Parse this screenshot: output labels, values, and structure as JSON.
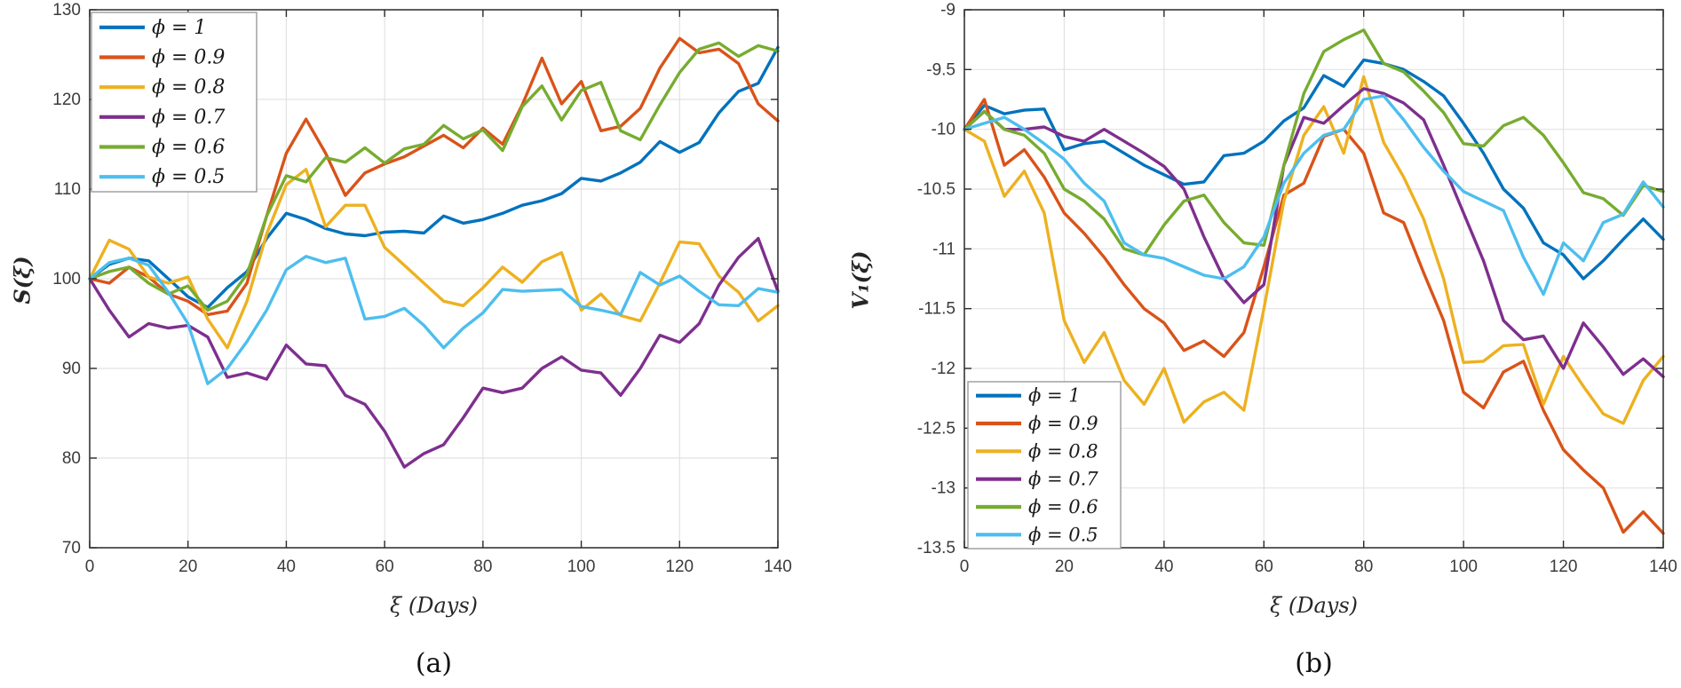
{
  "figure": {
    "background": "#ffffff",
    "captions": {
      "a": "(a)",
      "b": "(b)"
    }
  },
  "legend": {
    "labels": [
      "ϕ = 1",
      "ϕ = 0.9",
      "ϕ = 0.8",
      "ϕ = 0.7",
      "ϕ = 0.6",
      "ϕ = 0.5"
    ]
  },
  "colors": {
    "phi_1": "#0072BD",
    "phi_09": "#D95319",
    "phi_08": "#EDB120",
    "phi_07": "#7E2F8E",
    "phi_06": "#77AC30",
    "phi_05": "#4DBEEE",
    "grid": "#e2e2e2",
    "axis": "#2b2b2b",
    "tick_label": "#3b3b3b",
    "legend_border": "#9a9a9a"
  },
  "chart_data": [
    {
      "id": "a",
      "type": "line",
      "title": "",
      "xlabel": "ξ (Days)",
      "ylabel": "S(ξ)",
      "xlim": [
        0,
        140
      ],
      "ylim": [
        70,
        130
      ],
      "xticks": [
        0,
        20,
        40,
        60,
        80,
        100,
        120,
        140
      ],
      "yticks": [
        70,
        80,
        90,
        100,
        110,
        120,
        130
      ],
      "grid": true,
      "legend_position": "top-left",
      "x": [
        0,
        4,
        8,
        12,
        16,
        20,
        24,
        28,
        32,
        36,
        40,
        44,
        48,
        52,
        56,
        60,
        64,
        68,
        72,
        76,
        80,
        84,
        88,
        92,
        96,
        100,
        104,
        108,
        112,
        116,
        120,
        124,
        128,
        132,
        136,
        140
      ],
      "series": [
        {
          "name": "ϕ = 1",
          "color": "#0072BD",
          "values": [
            100,
            101.6,
            102.3,
            102.0,
            100.0,
            98.0,
            96.8,
            99.0,
            100.8,
            104.5,
            107.3,
            106.6,
            105.6,
            105.0,
            104.8,
            105.2,
            105.3,
            105.1,
            107.0,
            106.2,
            106.6,
            107.3,
            108.2,
            108.7,
            109.5,
            111.2,
            110.9,
            111.8,
            113.0,
            115.3,
            114.1,
            115.2,
            118.5,
            120.9,
            121.8,
            125.8
          ]
        },
        {
          "name": "ϕ = 0.9",
          "color": "#D95319",
          "values": [
            100,
            99.5,
            101.3,
            100.2,
            98.3,
            97.5,
            96.0,
            96.4,
            99.5,
            107.0,
            114.0,
            117.8,
            114.0,
            109.3,
            111.8,
            112.8,
            113.6,
            114.8,
            116.0,
            114.6,
            116.8,
            115.0,
            119.4,
            124.6,
            119.5,
            122.0,
            116.5,
            117.0,
            119.0,
            123.5,
            126.8,
            125.2,
            125.6,
            124.0,
            119.5,
            117.6
          ]
        },
        {
          "name": "ϕ = 0.8",
          "color": "#EDB120",
          "values": [
            100,
            104.3,
            103.3,
            100.2,
            99.5,
            100.2,
            95.5,
            92.3,
            97.5,
            105.0,
            110.5,
            112.2,
            105.8,
            108.2,
            108.2,
            103.5,
            101.5,
            99.5,
            97.5,
            97.0,
            99.0,
            101.3,
            99.6,
            101.9,
            102.9,
            96.5,
            98.3,
            95.9,
            95.3,
            99.5,
            104.1,
            103.9,
            100.3,
            98.5,
            95.3,
            97.0
          ]
        },
        {
          "name": "ϕ = 0.7",
          "color": "#7E2F8E",
          "values": [
            100,
            96.5,
            93.5,
            95.0,
            94.5,
            94.8,
            93.5,
            89.0,
            89.5,
            88.8,
            92.6,
            90.5,
            90.3,
            87.0,
            86.0,
            83.0,
            79.0,
            80.5,
            81.5,
            84.5,
            87.8,
            87.3,
            87.8,
            90.0,
            91.3,
            89.8,
            89.5,
            87.0,
            90.0,
            93.7,
            92.9,
            95.0,
            99.3,
            102.4,
            104.5,
            98.6
          ]
        },
        {
          "name": "ϕ = 0.6",
          "color": "#77AC30",
          "values": [
            100,
            100.8,
            101.3,
            99.5,
            98.3,
            99.2,
            96.5,
            97.5,
            100.5,
            107.0,
            111.5,
            110.8,
            113.5,
            113.0,
            114.6,
            112.9,
            114.5,
            115.0,
            117.1,
            115.6,
            116.6,
            114.3,
            119.2,
            121.5,
            117.7,
            121.0,
            121.9,
            116.5,
            115.5,
            119.4,
            123.0,
            125.6,
            126.3,
            124.8,
            126.0,
            125.4
          ]
        },
        {
          "name": "ϕ = 0.5",
          "color": "#4DBEEE",
          "values": [
            100,
            101.8,
            102.3,
            101.5,
            98.5,
            95.0,
            88.3,
            90.0,
            93.0,
            96.5,
            101.0,
            102.5,
            101.8,
            102.3,
            95.5,
            95.8,
            96.7,
            94.8,
            92.3,
            94.5,
            96.2,
            98.8,
            98.6,
            98.7,
            98.8,
            96.9,
            96.5,
            96.0,
            100.7,
            99.3,
            100.3,
            98.6,
            97.1,
            97.0,
            98.9,
            98.5
          ]
        }
      ]
    },
    {
      "id": "b",
      "type": "line",
      "title": "",
      "xlabel": "ξ (Days)",
      "ylabel": "V₁(ξ)",
      "xlim": [
        0,
        140
      ],
      "ylim": [
        -13.5,
        -9
      ],
      "xticks": [
        0,
        20,
        40,
        60,
        80,
        100,
        120,
        140
      ],
      "yticks": [
        -13.5,
        -13,
        -12.5,
        -12,
        -11.5,
        -11,
        -10.5,
        -10,
        -9.5,
        -9
      ],
      "grid": true,
      "legend_position": "bottom-left",
      "x": [
        0,
        4,
        8,
        12,
        16,
        20,
        24,
        28,
        32,
        36,
        40,
        44,
        48,
        52,
        56,
        60,
        64,
        68,
        72,
        76,
        80,
        84,
        88,
        92,
        96,
        100,
        104,
        108,
        112,
        116,
        120,
        124,
        128,
        132,
        136,
        140
      ],
      "series": [
        {
          "name": "ϕ = 1",
          "color": "#0072BD",
          "values": [
            -10.0,
            -9.8,
            -9.87,
            -9.84,
            -9.83,
            -10.17,
            -10.12,
            -10.1,
            -10.2,
            -10.3,
            -10.38,
            -10.46,
            -10.44,
            -10.22,
            -10.2,
            -10.1,
            -9.93,
            -9.82,
            -9.55,
            -9.64,
            -9.42,
            -9.45,
            -9.5,
            -9.6,
            -9.72,
            -9.95,
            -10.2,
            -10.5,
            -10.66,
            -10.95,
            -11.05,
            -11.25,
            -11.1,
            -10.92,
            -10.75,
            -10.92
          ]
        },
        {
          "name": "ϕ = 0.9",
          "color": "#D95319",
          "values": [
            -10.0,
            -9.75,
            -10.3,
            -10.17,
            -10.4,
            -10.7,
            -10.87,
            -11.07,
            -11.3,
            -11.5,
            -11.62,
            -11.85,
            -11.77,
            -11.9,
            -11.7,
            -11.15,
            -10.55,
            -10.45,
            -10.06,
            -10.0,
            -10.2,
            -10.7,
            -10.78,
            -11.2,
            -11.6,
            -12.2,
            -12.33,
            -12.03,
            -11.94,
            -12.35,
            -12.68,
            -12.85,
            -13.0,
            -13.37,
            -13.2,
            -13.38
          ]
        },
        {
          "name": "ϕ = 0.8",
          "color": "#EDB120",
          "values": [
            -10.0,
            -10.1,
            -10.56,
            -10.35,
            -10.7,
            -11.6,
            -11.95,
            -11.7,
            -12.1,
            -12.3,
            -12.0,
            -12.45,
            -12.28,
            -12.2,
            -12.35,
            -11.5,
            -10.6,
            -10.05,
            -9.81,
            -10.2,
            -9.56,
            -10.11,
            -10.4,
            -10.75,
            -11.25,
            -11.95,
            -11.94,
            -11.81,
            -11.8,
            -12.3,
            -11.9,
            -12.15,
            -12.38,
            -12.46,
            -12.1,
            -11.9
          ]
        },
        {
          "name": "ϕ = 0.7",
          "color": "#7E2F8E",
          "values": [
            -10.0,
            -9.85,
            -10.0,
            -10.0,
            -9.98,
            -10.06,
            -10.1,
            -10.0,
            -10.1,
            -10.2,
            -10.31,
            -10.5,
            -10.9,
            -11.25,
            -11.45,
            -11.3,
            -10.3,
            -9.9,
            -9.95,
            -9.8,
            -9.66,
            -9.7,
            -9.78,
            -9.92,
            -10.3,
            -10.7,
            -11.1,
            -11.6,
            -11.76,
            -11.73,
            -12.0,
            -11.62,
            -11.82,
            -12.05,
            -11.92,
            -12.07
          ]
        },
        {
          "name": "ϕ = 0.6",
          "color": "#77AC30",
          "values": [
            -10.0,
            -9.85,
            -10.0,
            -10.05,
            -10.2,
            -10.5,
            -10.6,
            -10.75,
            -11.0,
            -11.05,
            -10.8,
            -10.6,
            -10.55,
            -10.78,
            -10.95,
            -10.97,
            -10.3,
            -9.7,
            -9.35,
            -9.25,
            -9.17,
            -9.45,
            -9.52,
            -9.68,
            -9.86,
            -10.12,
            -10.14,
            -9.97,
            -9.9,
            -10.05,
            -10.28,
            -10.53,
            -10.58,
            -10.72,
            -10.47,
            -10.52
          ]
        },
        {
          "name": "ϕ = 0.5",
          "color": "#4DBEEE",
          "values": [
            -10.0,
            -9.95,
            -9.9,
            -10.0,
            -10.12,
            -10.25,
            -10.45,
            -10.6,
            -10.95,
            -11.05,
            -11.08,
            -11.15,
            -11.22,
            -11.25,
            -11.15,
            -10.9,
            -10.45,
            -10.2,
            -10.05,
            -10.0,
            -9.75,
            -9.72,
            -9.92,
            -10.15,
            -10.35,
            -10.52,
            -10.6,
            -10.68,
            -11.07,
            -11.38,
            -10.95,
            -11.1,
            -10.78,
            -10.71,
            -10.44,
            -10.65
          ]
        }
      ]
    }
  ]
}
